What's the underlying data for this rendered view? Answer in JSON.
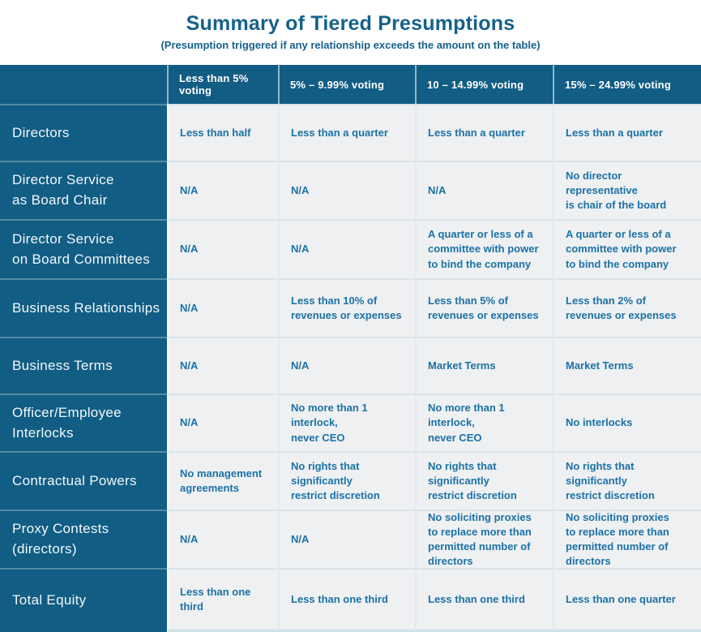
{
  "title": "Summary of Tiered Presumptions",
  "subtitle": "(Presumption triggered if any relationship exceeds the amount on the table)",
  "colors": {
    "accent_dark_teal": "#115d84",
    "title_text": "#15618b",
    "cell_text": "#1c72a5",
    "cell_background": "#eef0f2"
  },
  "table": {
    "column_headers": [
      "Less than 5% voting",
      "5% – 9.99% voting",
      "10 – 14.99% voting",
      "15% – 24.99% voting"
    ],
    "rows": [
      {
        "label": "Directors",
        "cells": [
          "Less than half",
          "Less than a quarter",
          "Less than a quarter",
          "Less than a quarter"
        ]
      },
      {
        "label": "Director Service\nas Board Chair",
        "cells": [
          "N/A",
          "N/A",
          "N/A",
          "No director representative\nis chair of the board"
        ]
      },
      {
        "label": "Director Service\non Board Committees",
        "cells": [
          "N/A",
          "N/A",
          "A quarter or less of a\ncommittee with power\nto bind the company",
          "A quarter or less of a\ncommittee with power\nto bind the company"
        ]
      },
      {
        "label": "Business Relationships",
        "cells": [
          "N/A",
          "Less than 10% of\nrevenues or expenses",
          "Less than 5% of\nrevenues or expenses",
          "Less than 2% of\nrevenues or expenses"
        ]
      },
      {
        "label": "Business Terms",
        "cells": [
          "N/A",
          "N/A",
          "Market Terms",
          "Market Terms"
        ]
      },
      {
        "label": "Officer/Employee\nInterlocks",
        "cells": [
          "N/A",
          "No more than 1 interlock,\nnever CEO",
          "No more than 1 interlock,\nnever CEO",
          "No interlocks"
        ]
      },
      {
        "label": "Contractual Powers",
        "cells": [
          "No management\nagreements",
          "No rights that significantly\nrestrict discretion",
          "No rights that significantly\nrestrict discretion",
          "No rights that significantly\nrestrict discretion"
        ]
      },
      {
        "label": "Proxy Contests\n(directors)",
        "cells": [
          "N/A",
          "N/A",
          "No soliciting proxies\nto replace more than\npermitted number of\ndirectors",
          "No soliciting proxies\nto replace more than\npermitted number of\ndirectors"
        ]
      },
      {
        "label": "Total Equity",
        "cells": [
          "Less than one third",
          "Less than one third",
          "Less than one third",
          "Less than one quarter"
        ]
      }
    ]
  }
}
